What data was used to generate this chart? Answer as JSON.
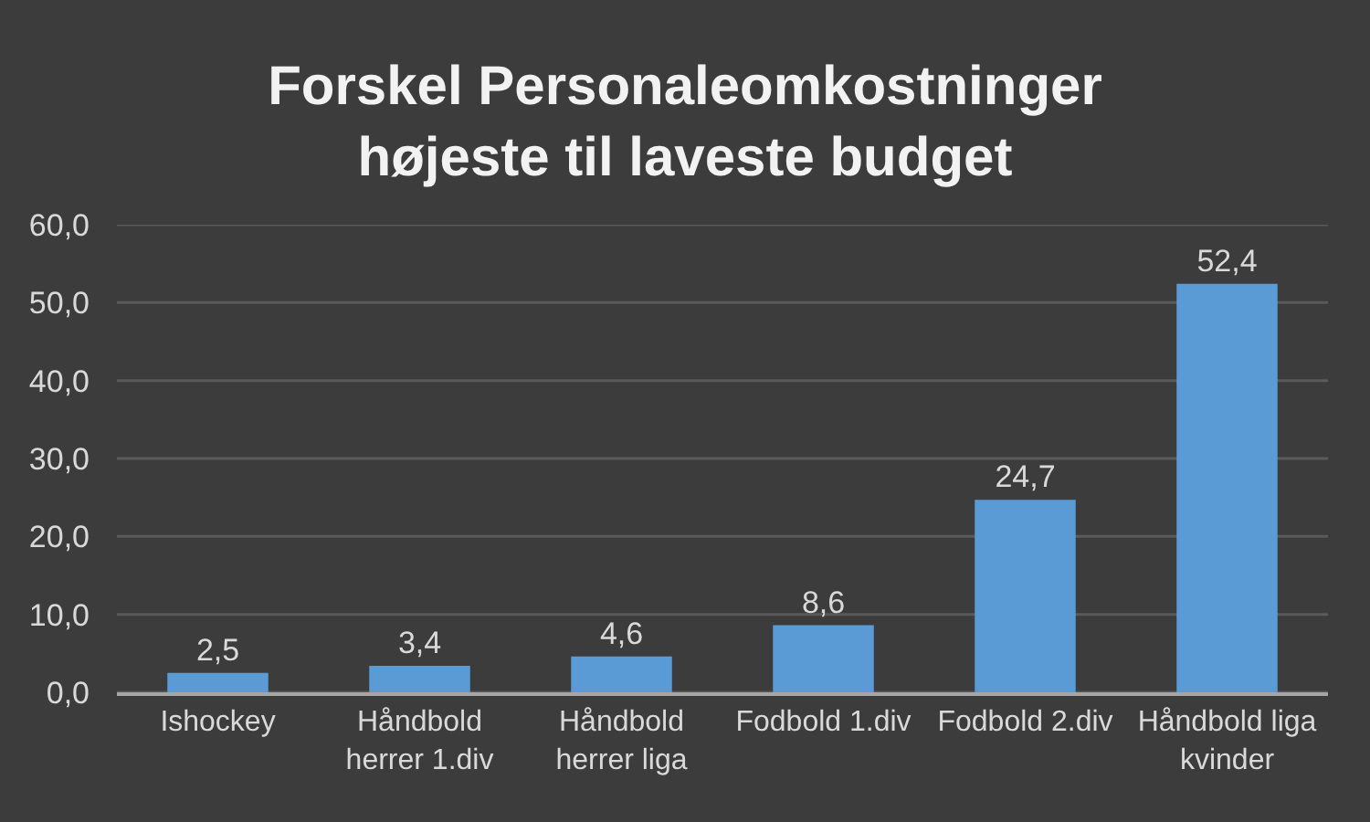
{
  "chart_data": {
    "type": "bar",
    "title": "Forskel Personaleomkostninger højeste til laveste budget",
    "categories": [
      "Ishockey",
      "Håndbold herrer 1.div",
      "Håndbold herrer liga",
      "Fodbold 1.div",
      "Fodbold 2.div",
      "Håndbold liga kvinder"
    ],
    "values": [
      2.5,
      3.4,
      4.6,
      8.6,
      24.7,
      52.4
    ],
    "value_labels": [
      "2,5",
      "3,4",
      "4,6",
      "8,6",
      "24,7",
      "52,4"
    ],
    "color": "#5b9bd5",
    "ylim": [
      0,
      60
    ],
    "yticks": [
      {
        "value": 0,
        "label": "0,0"
      },
      {
        "value": 10,
        "label": "10,0"
      },
      {
        "value": 20,
        "label": "20,0"
      },
      {
        "value": 30,
        "label": "30,0"
      },
      {
        "value": 40,
        "label": "40,0"
      },
      {
        "value": 50,
        "label": "50,0"
      },
      {
        "value": 60,
        "label": "60,0"
      }
    ],
    "grid": "y"
  }
}
